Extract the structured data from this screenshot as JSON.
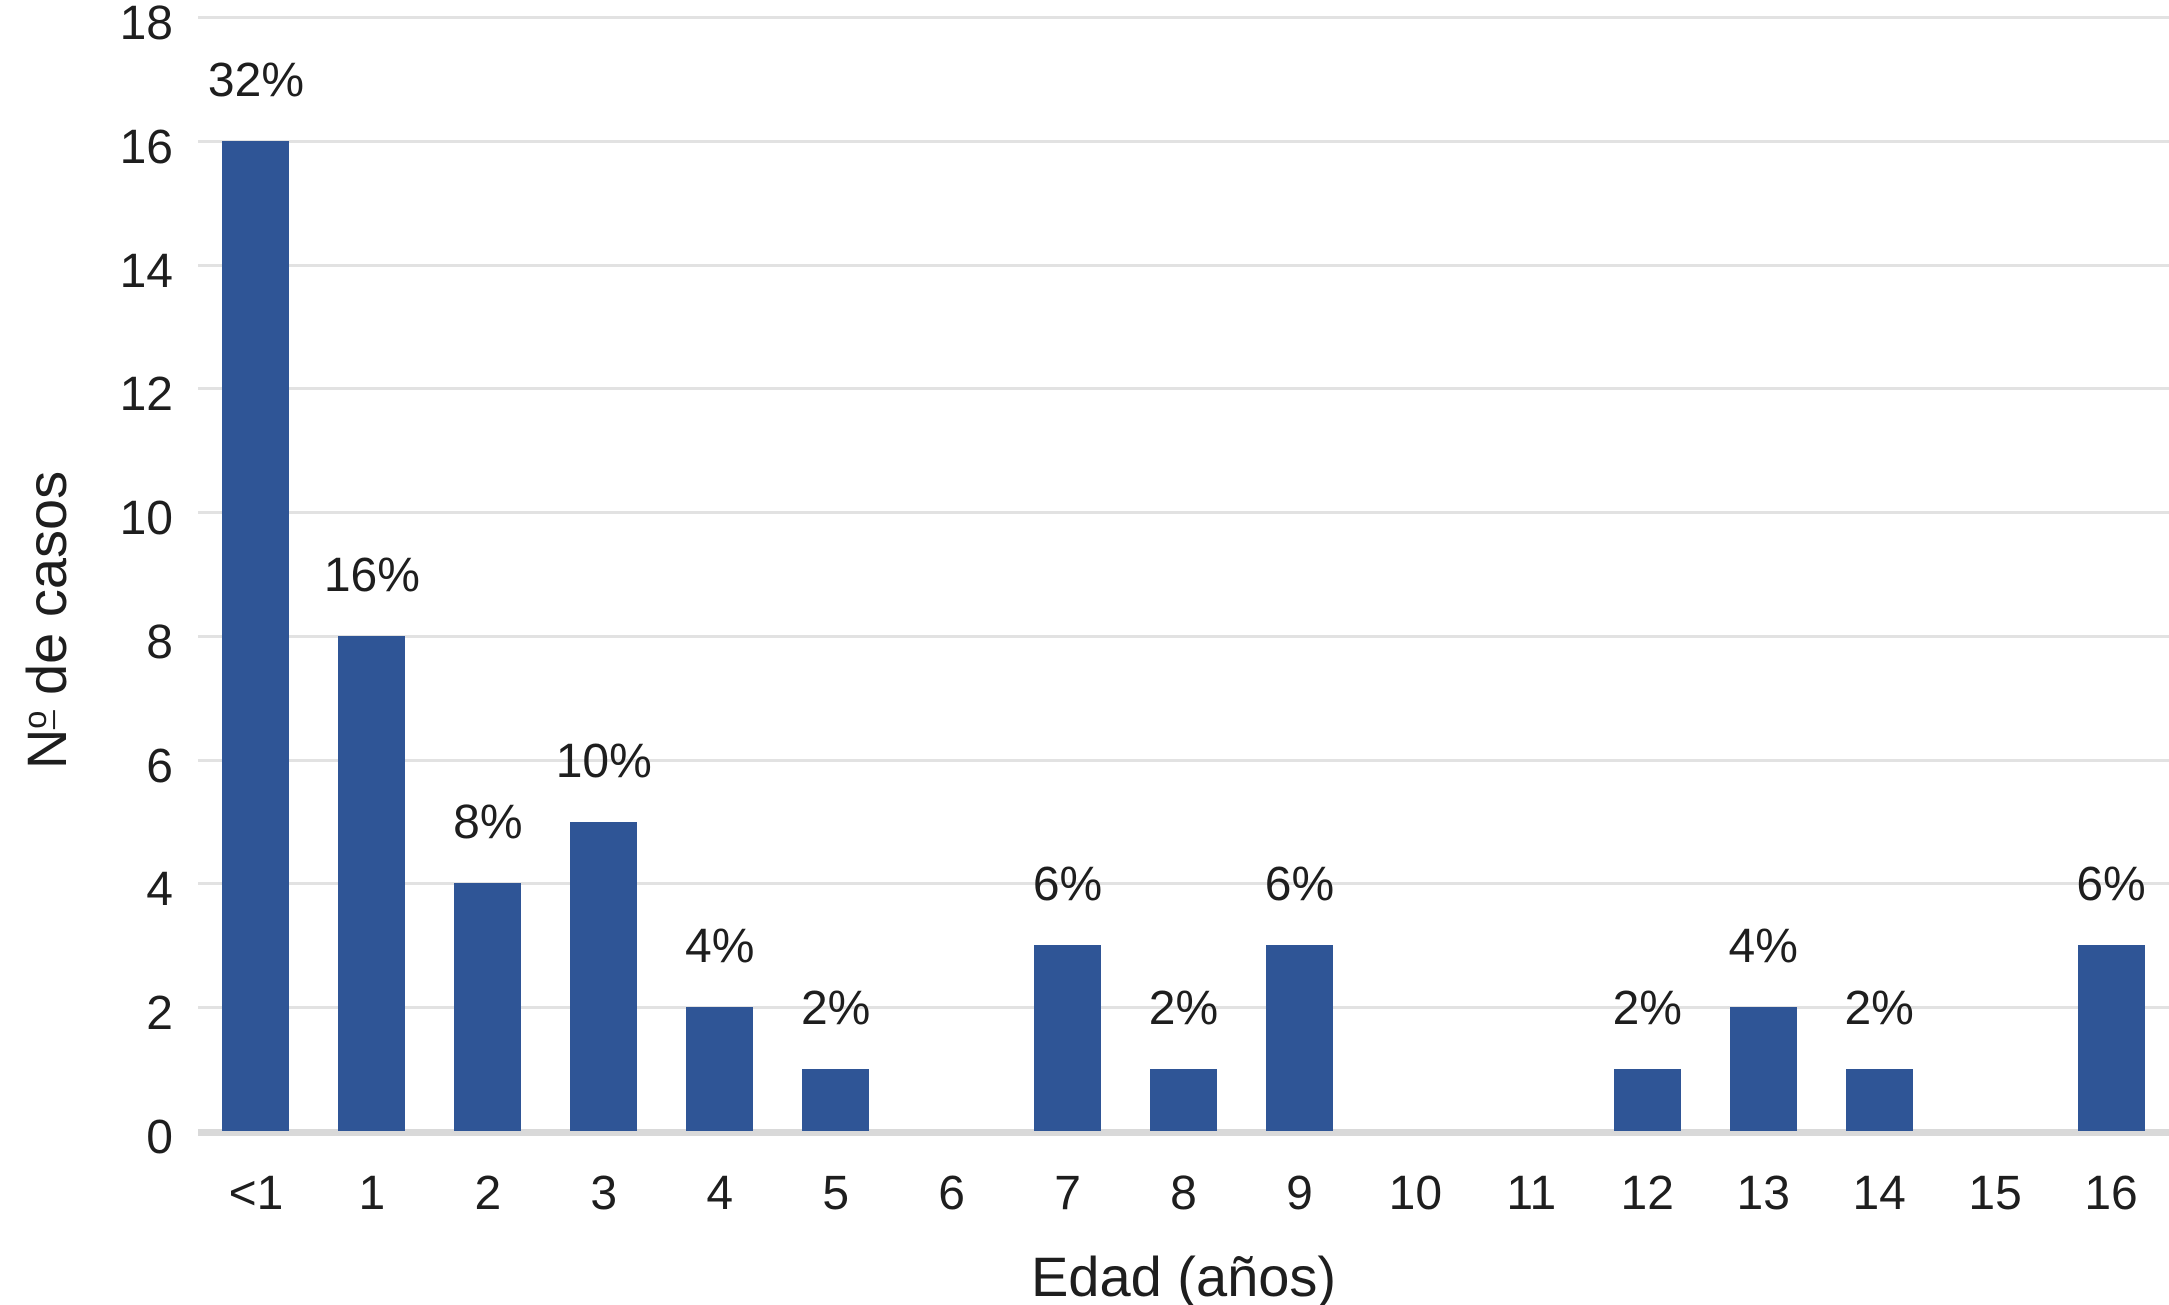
{
  "chart_data": {
    "type": "bar",
    "title": "",
    "xlabel": "Edad (años)",
    "ylabel": "Nº de casos",
    "ylabel_parts": {
      "prefix": "N",
      "ordinal": "o",
      "rest": "de casos"
    },
    "categories": [
      "<1",
      "1",
      "2",
      "3",
      "4",
      "5",
      "6",
      "7",
      "8",
      "9",
      "10",
      "11",
      "12",
      "13",
      "14",
      "15",
      "16"
    ],
    "values": [
      16,
      8,
      4,
      5,
      2,
      1,
      0,
      3,
      1,
      3,
      0,
      0,
      1,
      2,
      1,
      0,
      3
    ],
    "bar_labels": [
      "32%",
      "16%",
      "8%",
      "10%",
      "4%",
      "2%",
      "",
      "6%",
      "2%",
      "6%",
      "",
      "",
      "2%",
      "4%",
      "2%",
      "",
      "6%"
    ],
    "yticks": [
      0,
      2,
      4,
      6,
      8,
      10,
      12,
      14,
      16,
      18
    ],
    "ylim": [
      0,
      18
    ],
    "grid": "horizontal",
    "legend": "none",
    "colors": {
      "bar": "#2F5596",
      "gridline": "#E2E2E2",
      "axis_line": "#D9D9D9",
      "text": "#1E1E1E",
      "background": "#FFFFFF"
    }
  }
}
